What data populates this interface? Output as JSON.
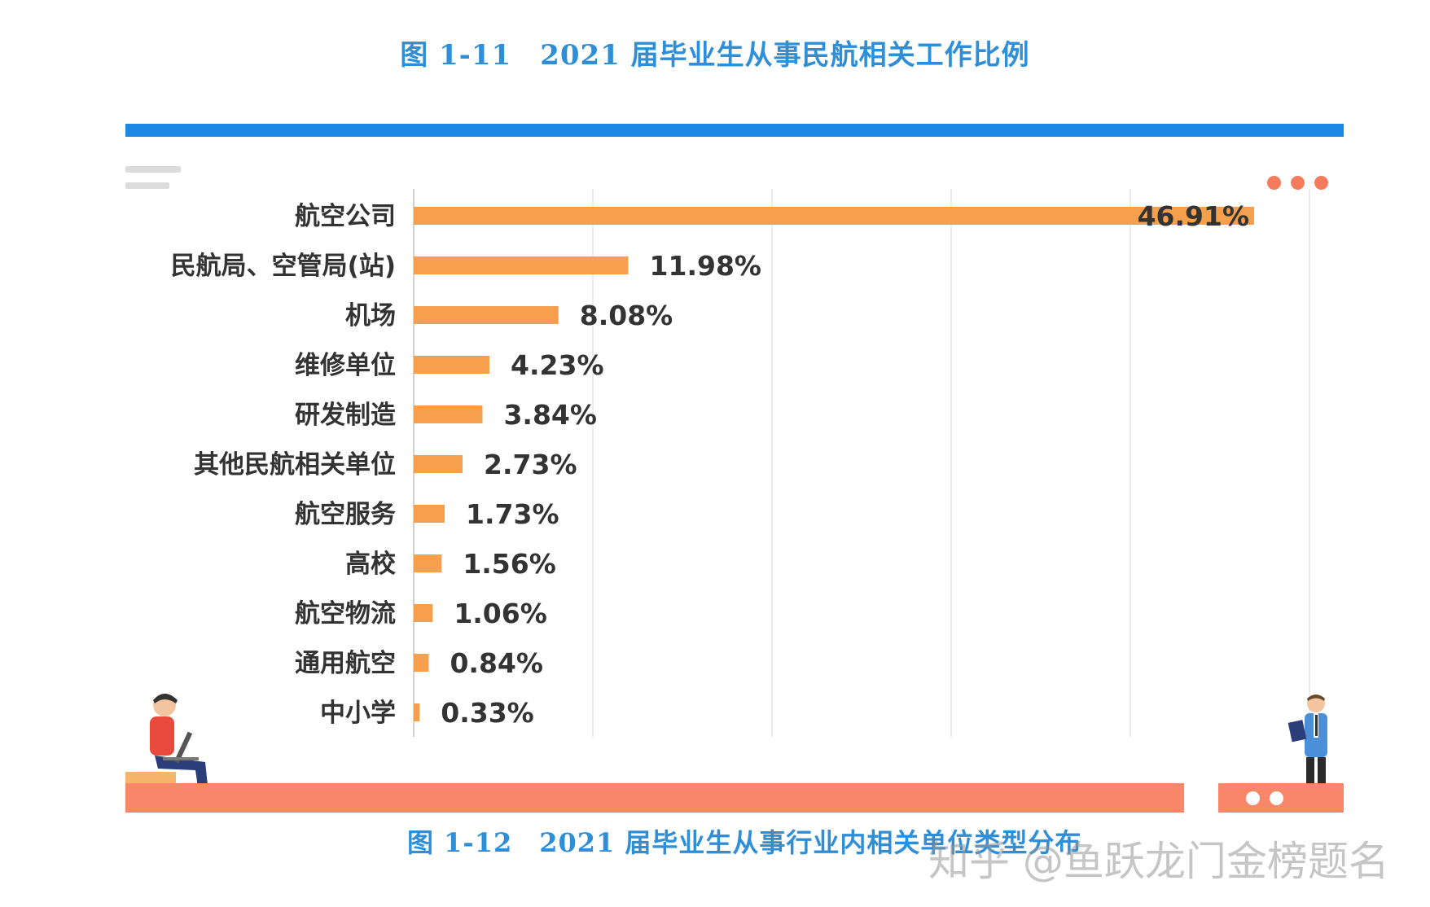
{
  "header": {
    "title": "图 1-11　2021 届毕业生从事民航相关工作比例"
  },
  "footer": {
    "next_title": "图 1-12　2021 届毕业生从事行业内相关单位类型分布",
    "watermark": "知乎 @鱼跃龙门金榜题名"
  },
  "colors": {
    "bar": "#f6a04d",
    "accent_blue": "#1e88e5",
    "accent_orange": "#f8876a",
    "title": "#2e8fd8"
  },
  "chart_data": {
    "type": "bar",
    "orientation": "horizontal",
    "title": "",
    "xlabel": "",
    "ylabel": "",
    "xlim": [
      0,
      50
    ],
    "grid": true,
    "categories": [
      "航空公司",
      "民航局、空管局(站)",
      "机场",
      "维修单位",
      "研发制造",
      "其他民航相关单位",
      "航空服务",
      "高校",
      "航空物流",
      "通用航空",
      "中小学"
    ],
    "values": [
      46.91,
      11.98,
      8.08,
      4.23,
      3.84,
      2.73,
      1.73,
      1.56,
      1.06,
      0.84,
      0.33
    ],
    "value_labels": [
      "46.91%",
      "11.98%",
      "8.08%",
      "4.23%",
      "3.84%",
      "2.73%",
      "1.73%",
      "1.56%",
      "1.06%",
      "0.84%",
      "0.33%"
    ]
  }
}
